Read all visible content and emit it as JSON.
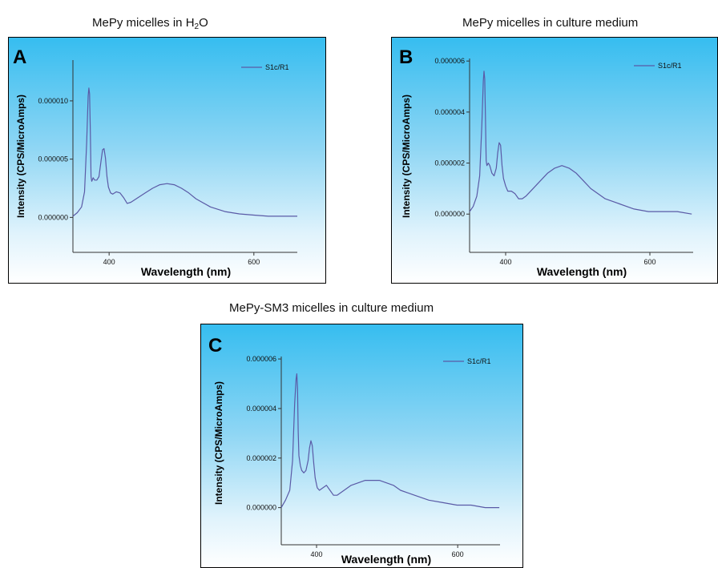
{
  "figure": {
    "titles": {
      "A": {
        "prefix": "MePy micelles in H",
        "sub": "2",
        "suffix": "O"
      },
      "B": "MePy micelles in culture medium",
      "C": "MePy-SM3 micelles in culture medium"
    }
  },
  "colors": {
    "series": "#5a5aa6",
    "axis": "#333333"
  },
  "chart_data": [
    {
      "type": "line",
      "panel_label": "A",
      "title": "MePy micelles in H2O",
      "xlabel": "Wavelength (nm)",
      "ylabel": "Intensity (CPS/MicroAmps)",
      "xlim": [
        350,
        660
      ],
      "ylim": [
        -3e-06,
        1.35e-05
      ],
      "x_ticks": [
        {
          "value": 400,
          "label": "400"
        },
        {
          "value": 600,
          "label": "600"
        }
      ],
      "y_ticks": [
        {
          "value": 0,
          "label": "0.000000"
        },
        {
          "value": 5e-06,
          "label": "0.000005"
        },
        {
          "value": 1e-05,
          "label": "0.000010"
        }
      ],
      "legend": "top-right",
      "series": [
        {
          "name": "S1c/R1",
          "x": [
            350,
            356,
            362,
            366,
            369,
            371,
            372,
            373,
            374,
            375,
            376,
            378,
            380,
            383,
            386,
            389,
            391,
            393,
            395,
            397,
            399,
            402,
            405,
            410,
            415,
            420,
            425,
            430,
            440,
            450,
            460,
            470,
            480,
            490,
            500,
            510,
            520,
            540,
            560,
            580,
            600,
            620,
            640,
            660
          ],
          "y": [
            1e-07,
            4e-07,
            9e-07,
            2.2e-06,
            6.5e-06,
            1.04e-05,
            1.11e-05,
            1.06e-05,
            7.5e-06,
            3.5e-06,
            3.1e-06,
            3.4e-06,
            3.2e-06,
            3.2e-06,
            3.5e-06,
            4.9e-06,
            5.8e-06,
            5.9e-06,
            5.1e-06,
            3.5e-06,
            2.6e-06,
            2.1e-06,
            2e-06,
            2.2e-06,
            2.1e-06,
            1.7e-06,
            1.2e-06,
            1.3e-06,
            1.7e-06,
            2.1e-06,
            2.5e-06,
            2.8e-06,
            2.9e-06,
            2.8e-06,
            2.5e-06,
            2.1e-06,
            1.6e-06,
            9e-07,
            5e-07,
            3e-07,
            2e-07,
            1e-07,
            1e-07,
            1e-07
          ]
        }
      ]
    },
    {
      "type": "line",
      "panel_label": "B",
      "title": "MePy micelles in culture medium",
      "xlabel": "Wavelength (nm)",
      "ylabel": "Intensity (CPS/MicroAmps)",
      "xlim": [
        350,
        660
      ],
      "ylim": [
        -1.5e-06,
        6.1e-06
      ],
      "x_ticks": [
        {
          "value": 400,
          "label": "400"
        },
        {
          "value": 600,
          "label": "600"
        }
      ],
      "y_ticks": [
        {
          "value": 0,
          "label": "0.000000"
        },
        {
          "value": 2e-06,
          "label": "0.000002"
        },
        {
          "value": 4e-06,
          "label": "0.000004"
        },
        {
          "value": 6e-06,
          "label": "0.000006"
        }
      ],
      "legend": "top-right",
      "series": [
        {
          "name": "S1c/R1",
          "x": [
            350,
            355,
            360,
            364,
            367,
            369,
            370,
            371,
            372,
            373,
            374,
            376,
            378,
            381,
            384,
            387,
            389,
            391,
            393,
            395,
            397,
            400,
            403,
            408,
            413,
            418,
            423,
            428,
            438,
            448,
            458,
            468,
            478,
            488,
            498,
            508,
            518,
            538,
            558,
            578,
            598,
            618,
            638,
            658
          ],
          "y": [
            1e-07,
            3e-07,
            7e-07,
            1.5e-06,
            3.5e-06,
            5.2e-06,
            5.6e-06,
            5.3e-06,
            3.8e-06,
            2.1e-06,
            1.9e-06,
            2e-06,
            1.9e-06,
            1.6e-06,
            1.5e-06,
            1.8e-06,
            2.4e-06,
            2.8e-06,
            2.7e-06,
            1.9e-06,
            1.4e-06,
            1.1e-06,
            9e-07,
            9e-07,
            8e-07,
            6e-07,
            6e-07,
            7e-07,
            1e-06,
            1.3e-06,
            1.6e-06,
            1.8e-06,
            1.9e-06,
            1.8e-06,
            1.6e-06,
            1.3e-06,
            1e-06,
            6e-07,
            4e-07,
            2e-07,
            1e-07,
            1e-07,
            1e-07,
            0.0
          ]
        }
      ]
    },
    {
      "type": "line",
      "panel_label": "C",
      "title": "MePy-SM3 micelles in culture medium",
      "xlabel": "Wavelength (nm)",
      "ylabel": "Intensity (CPS/MicroAmps)",
      "xlim": [
        350,
        660
      ],
      "ylim": [
        -1.5e-06,
        6.1e-06
      ],
      "x_ticks": [
        {
          "value": 400,
          "label": "400"
        },
        {
          "value": 600,
          "label": "600"
        }
      ],
      "y_ticks": [
        {
          "value": 0,
          "label": "0.000000"
        },
        {
          "value": 2e-06,
          "label": "0.000002"
        },
        {
          "value": 4e-06,
          "label": "0.000004"
        },
        {
          "value": 6e-06,
          "label": "0.000006"
        }
      ],
      "legend": "top-right",
      "series": [
        {
          "name": "S1c/R1",
          "x": [
            350,
            356,
            362,
            366,
            369,
            371,
            372,
            373,
            374,
            375,
            377,
            379,
            382,
            385,
            388,
            390,
            392,
            394,
            396,
            398,
            401,
            404,
            409,
            414,
            419,
            424,
            429,
            439,
            449,
            459,
            469,
            479,
            489,
            499,
            509,
            519,
            539,
            559,
            579,
            599,
            619,
            639,
            659
          ],
          "y": [
            0.0,
            3e-07,
            7e-07,
            1.9e-06,
            4.2e-06,
            5.2e-06,
            5.4e-06,
            4.8e-06,
            3.1e-06,
            2.1e-06,
            1.7e-06,
            1.5e-06,
            1.4e-06,
            1.5e-06,
            1.9e-06,
            2.4e-06,
            2.7e-06,
            2.5e-06,
            1.8e-06,
            1.2e-06,
            8e-07,
            7e-07,
            8e-07,
            9e-07,
            7e-07,
            5e-07,
            5e-07,
            7e-07,
            9e-07,
            1e-06,
            1.1e-06,
            1.1e-06,
            1.1e-06,
            1e-06,
            9e-07,
            7e-07,
            5e-07,
            3e-07,
            2e-07,
            1e-07,
            1e-07,
            0.0,
            0.0
          ]
        }
      ]
    }
  ]
}
